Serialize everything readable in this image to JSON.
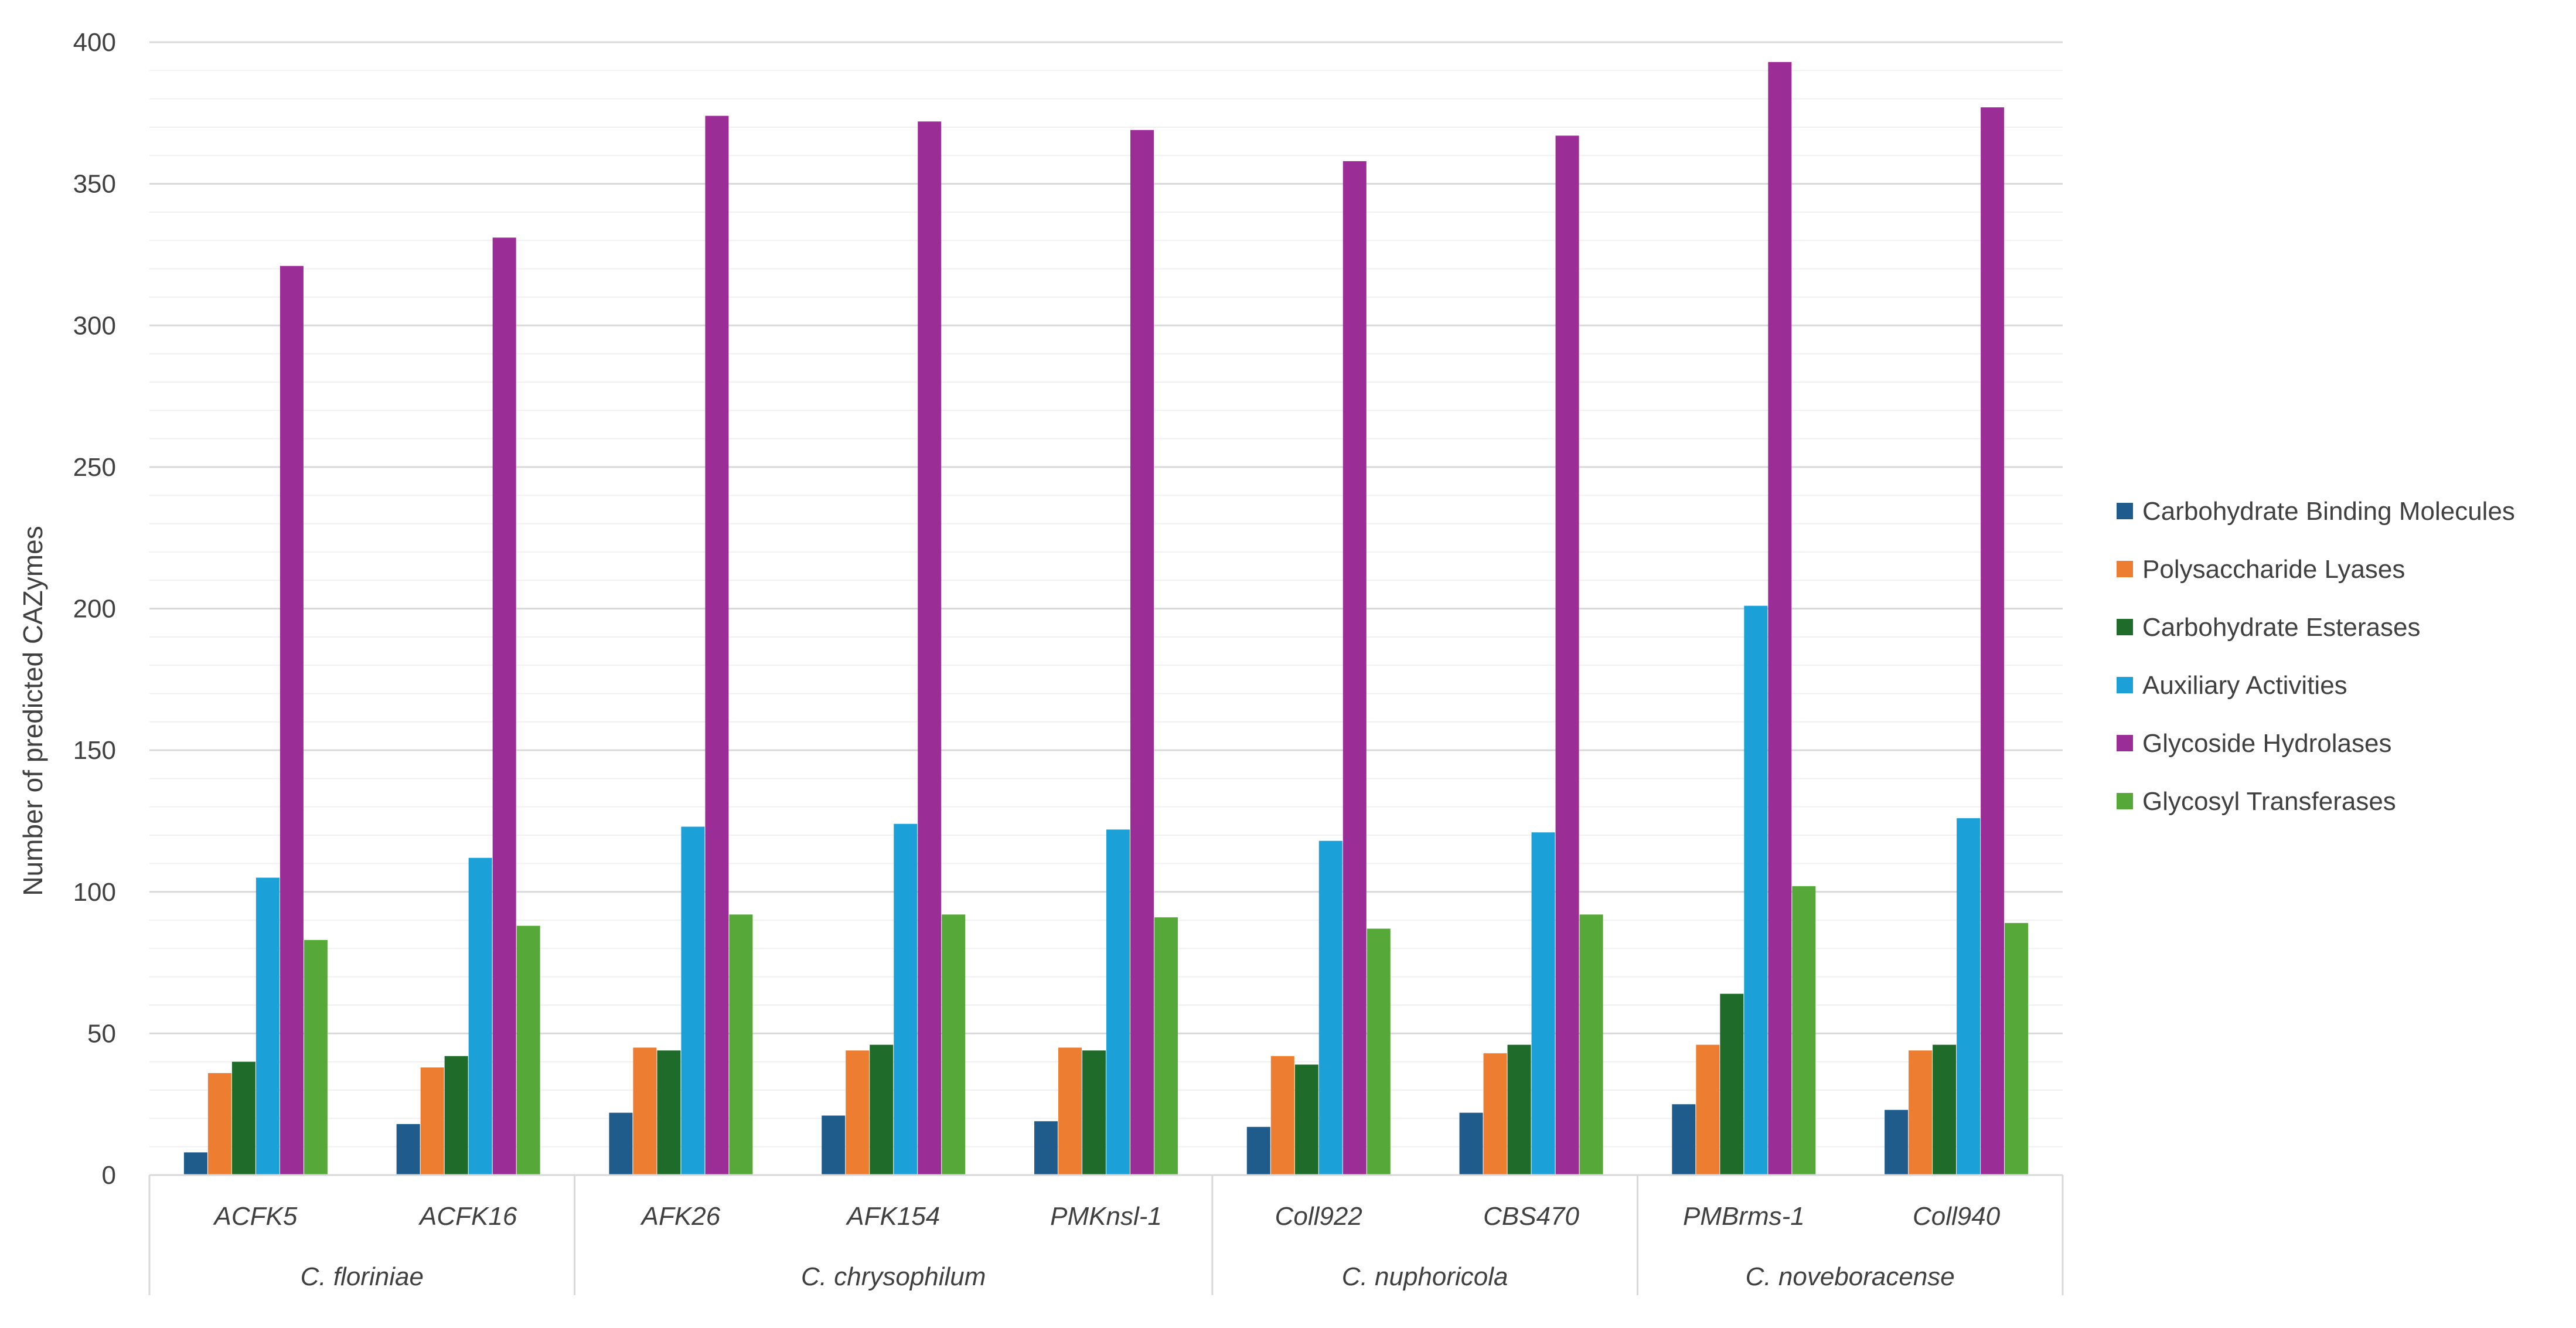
{
  "chart_data": {
    "type": "bar",
    "title": "",
    "xlabel": "",
    "ylabel": "Number of predicted CAZymes",
    "ylim": [
      0,
      400
    ],
    "yticks": [
      0,
      50,
      100,
      150,
      200,
      250,
      300,
      350,
      400
    ],
    "minor_grid_step": 10,
    "grid": true,
    "legend_position": "right",
    "categories": [
      "ACFK5",
      "ACFK16",
      "AFK26",
      "AFK154",
      "PMKnsl-1",
      "Coll922",
      "CBS470",
      "PMBrms-1",
      "Coll940"
    ],
    "groups": [
      {
        "name": "C. floriniae",
        "categories": [
          "ACFK5",
          "ACFK16"
        ]
      },
      {
        "name": "C. chrysophilum",
        "categories": [
          "AFK26",
          "AFK154",
          "PMKnsl-1"
        ]
      },
      {
        "name": "C. nuphoricola",
        "categories": [
          "Coll922",
          "CBS470"
        ]
      },
      {
        "name": "C. noveboracense",
        "categories": [
          "PMBrms-1",
          "Coll940"
        ]
      }
    ],
    "series": [
      {
        "name": "Carbohydrate Binding Molecules",
        "color": "#1f5c8b",
        "values": [
          8,
          18,
          22,
          21,
          19,
          17,
          22,
          25,
          23
        ]
      },
      {
        "name": "Polysaccharide Lyases",
        "color": "#ed7d31",
        "values": [
          36,
          38,
          45,
          44,
          45,
          42,
          43,
          46,
          44
        ]
      },
      {
        "name": "Carbohydrate Esterases",
        "color": "#1e6b2a",
        "values": [
          40,
          42,
          44,
          46,
          44,
          39,
          46,
          64,
          46
        ]
      },
      {
        "name": "Auxiliary Activities",
        "color": "#1ba1d8",
        "values": [
          105,
          112,
          123,
          124,
          122,
          118,
          121,
          201,
          126
        ]
      },
      {
        "name": "Glycoside Hydrolases",
        "color": "#9b2d96",
        "values": [
          321,
          331,
          374,
          372,
          369,
          358,
          367,
          393,
          377
        ]
      },
      {
        "name": "Glycosyl Transferases",
        "color": "#56a838",
        "values": [
          83,
          88,
          92,
          92,
          91,
          87,
          92,
          102,
          89
        ]
      }
    ]
  }
}
